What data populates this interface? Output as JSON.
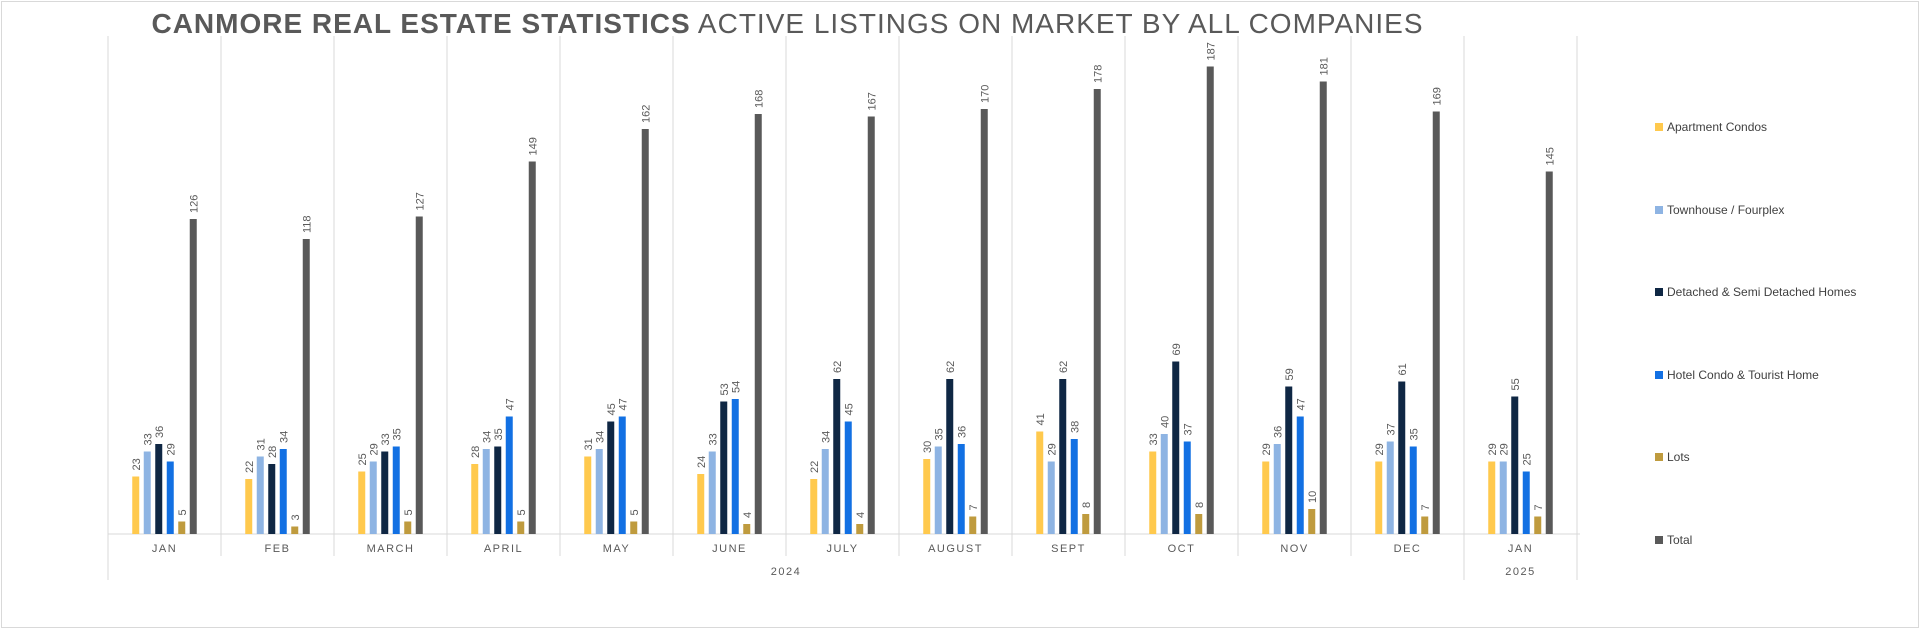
{
  "title": {
    "bold": "CANMORE REAL ESTATE STATISTICS",
    "rest": " ACTIVE LISTINGS ON MARKET BY ALL COMPANIES"
  },
  "chart_data": {
    "type": "bar",
    "title": "CANMORE REAL ESTATE STATISTICS ACTIVE LISTINGS ON MARKET BY ALL COMPANIES",
    "categories": [
      "JAN",
      "FEB",
      "MARCH",
      "APRIL",
      "MAY",
      "JUNE",
      "JULY",
      "AUGUST",
      "SEPT",
      "OCT",
      "NOV",
      "DEC",
      "JAN"
    ],
    "groups": [
      {
        "label": "2024",
        "count": 12
      },
      {
        "label": "2025",
        "count": 1
      }
    ],
    "series": [
      {
        "name": "Apartment Condos",
        "color": "#FFC94D",
        "values": [
          23,
          22,
          25,
          28,
          31,
          24,
          22,
          30,
          41,
          33,
          29,
          29,
          29
        ]
      },
      {
        "name": "Townhouse / Fourplex",
        "color": "#8EB4E3",
        "values": [
          33,
          31,
          29,
          34,
          34,
          33,
          34,
          35,
          29,
          40,
          36,
          37,
          29
        ]
      },
      {
        "name": "Detached & Semi Detached Homes",
        "color": "#0F2744",
        "values": [
          36,
          28,
          33,
          35,
          45,
          53,
          62,
          62,
          62,
          69,
          59,
          61,
          55
        ]
      },
      {
        "name": "Hotel Condo & Tourist Home",
        "color": "#1270E3",
        "values": [
          29,
          34,
          35,
          47,
          47,
          54,
          45,
          36,
          38,
          37,
          47,
          35,
          25
        ]
      },
      {
        "name": "Lots",
        "color": "#BF9B3E",
        "values": [
          5,
          3,
          5,
          5,
          5,
          4,
          4,
          7,
          8,
          8,
          10,
          7,
          7
        ]
      },
      {
        "name": "Total",
        "color": "#595959",
        "values": [
          126,
          118,
          127,
          149,
          162,
          168,
          167,
          170,
          178,
          187,
          181,
          169,
          145
        ]
      }
    ],
    "ylim": [
      0,
      200
    ],
    "legend_position": "right",
    "grid": false
  }
}
